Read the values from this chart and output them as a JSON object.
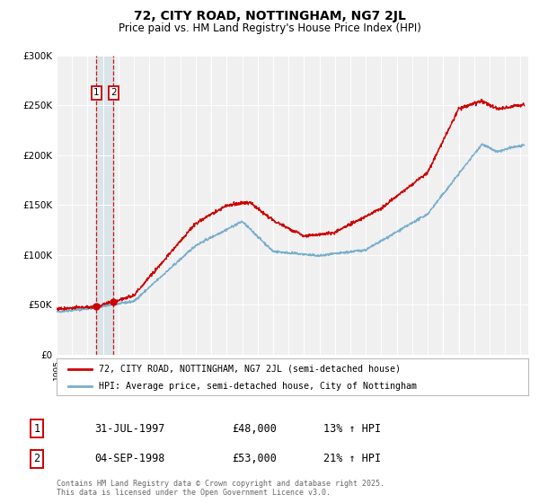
{
  "title": "72, CITY ROAD, NOTTINGHAM, NG7 2JL",
  "subtitle": "Price paid vs. HM Land Registry's House Price Index (HPI)",
  "legend_line1": "72, CITY ROAD, NOTTINGHAM, NG7 2JL (semi-detached house)",
  "legend_line2": "HPI: Average price, semi-detached house, City of Nottingham",
  "red_color": "#cc0000",
  "blue_color": "#7aaecc",
  "transaction1_date": "31-JUL-1997",
  "transaction1_price": "£48,000",
  "transaction1_hpi": "13% ↑ HPI",
  "transaction1_x": 1997.57,
  "transaction1_y": 48000,
  "transaction2_date": "04-SEP-1998",
  "transaction2_price": "£53,000",
  "transaction2_hpi": "21% ↑ HPI",
  "transaction2_x": 1998.68,
  "transaction2_y": 53000,
  "ylim": [
    0,
    300000
  ],
  "xlim_start": 1995.0,
  "xlim_end": 2025.5,
  "yticks": [
    0,
    50000,
    100000,
    150000,
    200000,
    250000,
    300000
  ],
  "ytick_labels": [
    "£0",
    "£50K",
    "£100K",
    "£150K",
    "£200K",
    "£250K",
    "£300K"
  ],
  "copyright_text": "Contains HM Land Registry data © Crown copyright and database right 2025.\nThis data is licensed under the Open Government Licence v3.0.",
  "background_color": "#ffffff",
  "plot_bg_color": "#f0f0f0"
}
